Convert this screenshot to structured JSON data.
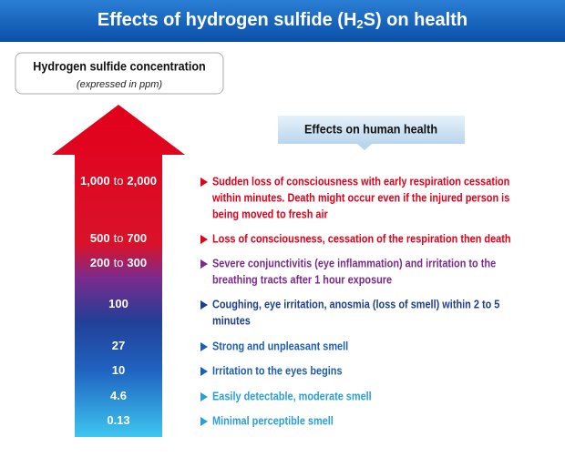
{
  "header": {
    "title": {
      "pre": "Effects of hydrogen sulfide (H",
      "sub": "2",
      "post": "S) on health"
    }
  },
  "concentration_box": {
    "title": "Hydrogen sulfide concentration",
    "subtitle": "(expressed in ppm)"
  },
  "effects_header": "Effects on human health",
  "levels": [
    {
      "from": "1,000",
      "sep": "to",
      "to": "2,000",
      "color": "#e3001b",
      "effect": [
        "Sudden loss of consciousness with early respiration cessation",
        "within minutes. Death might occur even if the injured person is",
        "being moved to fresh air"
      ]
    },
    {
      "from": "500",
      "sep": "to",
      "to": "700",
      "color": "#e3001b",
      "effect": [
        "Loss of consciousness, cessation of the respiration then death"
      ]
    },
    {
      "from": "200",
      "sep": "to",
      "to": "300",
      "color": "#7b2a8c",
      "effect": [
        "Severe conjunctivitis (eye inflammation) and irritation to the",
        "breathing tracts after 1 hour exposure"
      ]
    },
    {
      "from": "100",
      "color": "#1d3f8f",
      "effect": [
        "Coughing, eye irritation, anosmia (loss of smell) within 2 to 5",
        "minutes"
      ]
    },
    {
      "from": "27",
      "color": "#1d5fb3",
      "effect": [
        "Strong and unpleasant smell"
      ]
    },
    {
      "from": "10",
      "color": "#1d5fb3",
      "effect": [
        "Irritation to the eyes begins"
      ]
    },
    {
      "from": "4.6",
      "color": "#2a9fd8",
      "effect": [
        "Easily detectable, moderate smell"
      ]
    },
    {
      "from": "0.13",
      "color": "#2a9fd8",
      "effect": [
        "Minimal perceptible smell"
      ]
    }
  ]
}
